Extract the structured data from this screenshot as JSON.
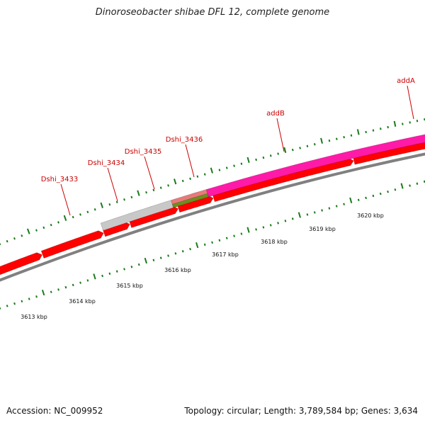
{
  "title": "Dinoroseobacter shibae DFL 12, complete genome",
  "footer": {
    "accession": "Accession: NC_009952",
    "summary": "Topology: circular; Length: 3,789,584 bp; Genes: 3,634"
  },
  "colors": {
    "cds": "#ff0000",
    "gene": "#c8c8c8",
    "rna": "#e87a7a",
    "other": "#6e8e1e",
    "highlight": "#ff1aa8",
    "backbone": "#808080",
    "ticks": "#1a7a1a",
    "label": "#cc0000"
  },
  "scale": {
    "ticks": [
      {
        "label": "3613 kbp"
      },
      {
        "label": "3614 kbp"
      },
      {
        "label": "3615 kbp"
      },
      {
        "label": "3616 kbp"
      },
      {
        "label": "3617 kbp"
      },
      {
        "label": "3618 kbp"
      },
      {
        "label": "3619 kbp"
      },
      {
        "label": "3620 kbp"
      }
    ]
  },
  "gene_labels": [
    {
      "name": "Dshi_3433"
    },
    {
      "name": "Dshi_3434"
    },
    {
      "name": "Dshi_3435"
    },
    {
      "name": "Dshi_3436"
    },
    {
      "name": "addB"
    },
    {
      "name": "addA"
    }
  ]
}
